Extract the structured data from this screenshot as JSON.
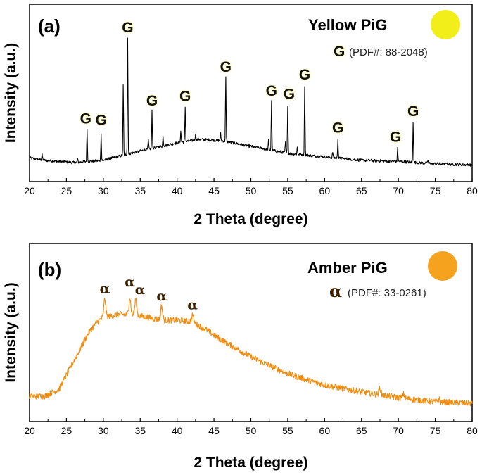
{
  "chart_data": [
    {
      "type": "line",
      "panel_label": "(a)",
      "legend_title": "Yellow PiG",
      "legend_symbol": "G",
      "legend_pdf": "(PDF#: 88-2048)",
      "xlabel": "2 Theta (degree)",
      "ylabel": "Intensity (a.u.)",
      "xlim": [
        20,
        80
      ],
      "x_ticks": [
        20,
        25,
        30,
        35,
        40,
        45,
        50,
        55,
        60,
        65,
        70,
        75,
        80
      ],
      "line_color": "#000000",
      "swatch_color": "#f2ee1a",
      "baseline": [
        [
          20,
          0.07
        ],
        [
          22,
          0.05
        ],
        [
          26,
          0.03
        ],
        [
          30,
          0.05
        ],
        [
          35,
          0.13
        ],
        [
          40,
          0.2
        ],
        [
          43,
          0.23
        ],
        [
          46,
          0.22
        ],
        [
          50,
          0.17
        ],
        [
          55,
          0.11
        ],
        [
          60,
          0.08
        ],
        [
          65,
          0.05
        ],
        [
          70,
          0.04
        ],
        [
          75,
          0.02
        ],
        [
          80,
          0.01
        ]
      ],
      "peaks": [
        [
          21.7,
          0.06
        ],
        [
          26.5,
          0.03
        ],
        [
          27.8,
          0.28
        ],
        [
          29.7,
          0.24
        ],
        [
          32.7,
          0.6
        ],
        [
          33.3,
          1.0
        ],
        [
          36.1,
          0.08
        ],
        [
          36.6,
          0.32
        ],
        [
          38.1,
          0.08
        ],
        [
          40.5,
          0.1
        ],
        [
          41.1,
          0.3
        ],
        [
          42.5,
          0.06
        ],
        [
          45.9,
          0.06
        ],
        [
          46.6,
          0.55
        ],
        [
          52.4,
          0.08
        ],
        [
          52.8,
          0.42
        ],
        [
          54.7,
          0.1
        ],
        [
          55.0,
          0.42
        ],
        [
          56.3,
          0.06
        ],
        [
          57.3,
          0.6
        ],
        [
          61.1,
          0.05
        ],
        [
          61.8,
          0.17
        ],
        [
          69.9,
          0.12
        ],
        [
          72.0,
          0.35
        ],
        [
          74.0,
          0.03
        ],
        [
          76.5,
          0.02
        ]
      ],
      "peak_labels": [
        {
          "x": 27.8,
          "text": "G"
        },
        {
          "x": 29.7,
          "text": "G"
        },
        {
          "x": 33.3,
          "text": "G"
        },
        {
          "x": 36.6,
          "text": "G"
        },
        {
          "x": 41.1,
          "text": "G"
        },
        {
          "x": 46.6,
          "text": "G"
        },
        {
          "x": 52.8,
          "text": "G"
        },
        {
          "x": 55.0,
          "text": "G"
        },
        {
          "x": 57.3,
          "text": "G"
        },
        {
          "x": 61.8,
          "text": "G"
        },
        {
          "x": 69.9,
          "text": "G"
        },
        {
          "x": 72.0,
          "text": "G"
        }
      ]
    },
    {
      "type": "line",
      "panel_label": "(b)",
      "legend_title": "Amber PiG",
      "legend_symbol": "α",
      "legend_pdf": "(PDF#: 33-0261)",
      "xlabel": "2 Theta (degree)",
      "ylabel": "Intensity (a.u.)",
      "xlim": [
        20,
        80
      ],
      "x_ticks": [
        20,
        25,
        30,
        35,
        40,
        45,
        50,
        55,
        60,
        65,
        70,
        75,
        80
      ],
      "line_color": "#f28c0f",
      "swatch_color": "#f5a21e",
      "baseline": [
        [
          20,
          0.1
        ],
        [
          22,
          0.1
        ],
        [
          24,
          0.15
        ],
        [
          26,
          0.35
        ],
        [
          28,
          0.55
        ],
        [
          29,
          0.62
        ],
        [
          30,
          0.66
        ],
        [
          32,
          0.68
        ],
        [
          34,
          0.68
        ],
        [
          36,
          0.66
        ],
        [
          38,
          0.64
        ],
        [
          40,
          0.64
        ],
        [
          42,
          0.63
        ],
        [
          44,
          0.57
        ],
        [
          46,
          0.5
        ],
        [
          48,
          0.44
        ],
        [
          50,
          0.38
        ],
        [
          52,
          0.33
        ],
        [
          55,
          0.26
        ],
        [
          58,
          0.21
        ],
        [
          60,
          0.18
        ],
        [
          65,
          0.13
        ],
        [
          70,
          0.09
        ],
        [
          75,
          0.06
        ],
        [
          80,
          0.05
        ]
      ],
      "peaks": [
        [
          30.2,
          0.13
        ],
        [
          33.6,
          0.12
        ],
        [
          34.4,
          0.11
        ],
        [
          37.9,
          0.1
        ],
        [
          42.1,
          0.05
        ],
        [
          67.5,
          0.05
        ],
        [
          70.7,
          0.03
        ],
        [
          75.5,
          0.02
        ]
      ],
      "peak_labels": [
        {
          "x": 30.2,
          "text": "α"
        },
        {
          "x": 33.6,
          "text": "α"
        },
        {
          "x": 34.4,
          "text": "α"
        },
        {
          "x": 37.9,
          "text": "α"
        },
        {
          "x": 42.1,
          "text": "α"
        }
      ]
    }
  ]
}
